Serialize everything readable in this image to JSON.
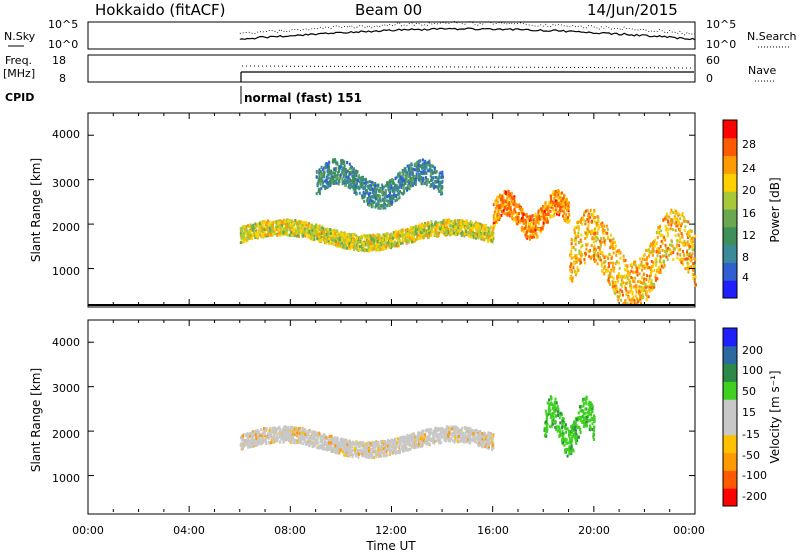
{
  "header": {
    "radar": "Hokkaido (fitACF)",
    "beam": "Beam 00",
    "date": "14/Jun/2015"
  },
  "panels": {
    "nsky": {
      "label": "N.Sky",
      "left_ticks": [
        "10^5",
        "10^0"
      ],
      "right_ticks": [
        "10^5",
        "10^0"
      ],
      "right_label": "N.Search"
    },
    "freq": {
      "label_line1": "Freq.",
      "label_line2": "[MHz]",
      "left_ticks": [
        "18",
        "8"
      ],
      "right_ticks": [
        "60",
        "0"
      ],
      "right_label": "Nave"
    },
    "cpid": {
      "label": "CPID",
      "mode_text": "normal (fast) 151"
    }
  },
  "time_axis": {
    "ticks": [
      "00:00",
      "04:00",
      "08:00",
      "12:00",
      "16:00",
      "20:00",
      "00:00"
    ],
    "label": "Time UT"
  },
  "power_panel": {
    "ylabel": "Slant Range [km]",
    "yticks": [
      "4000",
      "3000",
      "2000",
      "1000"
    ],
    "colorbar_label": "Power [dB]",
    "colorbar_ticks": [
      "28",
      "24",
      "20",
      "16",
      "12",
      "8",
      "4"
    ]
  },
  "velocity_panel": {
    "ylabel": "Slant Range [km]",
    "yticks": [
      "4000",
      "3000",
      "2000",
      "1000"
    ],
    "colorbar_label": "Velocity [m s⁻¹]",
    "colorbar_ticks": [
      "200",
      "100",
      "50",
      "15",
      "-15",
      "-50",
      "-100",
      "-200"
    ]
  },
  "chart_data": [
    {
      "type": "heatmap",
      "title": "Power",
      "xlabel": "Time UT",
      "ylabel": "Slant Range [km]",
      "xlim_hours": [
        0,
        24
      ],
      "ylim_km": [
        180,
        4500
      ],
      "colorbar": {
        "label": "Power [dB]",
        "range": [
          0,
          30
        ],
        "colors": [
          "#2020ff",
          "#3060d0",
          "#3a8a9a",
          "#3f8f5a",
          "#6aa84f",
          "#a8c838",
          "#ffd000",
          "#ff9a00",
          "#ff5a00",
          "#ff0000"
        ]
      },
      "data_start_hour": 6,
      "scatter_bands": [
        {
          "from_hour": 6,
          "to_hour": 16,
          "range_km": [
            1500,
            2000
          ],
          "power_db": 18
        },
        {
          "from_hour": 9,
          "to_hour": 14,
          "range_km": [
            2500,
            3300
          ],
          "power_db": 8
        },
        {
          "from_hour": 16,
          "to_hour": 19,
          "range_km": [
            1800,
            2600
          ],
          "power_db": 24
        },
        {
          "from_hour": 19,
          "to_hour": 24,
          "range_km": [
            300,
            2000
          ],
          "power_db": 22
        }
      ]
    },
    {
      "type": "heatmap",
      "title": "Velocity",
      "xlabel": "Time UT",
      "ylabel": "Slant Range [km]",
      "xlim_hours": [
        0,
        24
      ],
      "ylim_km": [
        180,
        4500
      ],
      "colorbar": {
        "label": "Velocity [m s⁻¹]",
        "range": [
          -250,
          250
        ],
        "colors": [
          "#ff0000",
          "#ff5a00",
          "#ff9a00",
          "#ffc000",
          "#c8c8c8",
          "#c8c8c8",
          "#40d020",
          "#2c8a48",
          "#2a6aa0",
          "#2020ff"
        ]
      },
      "data_start_hour": 6,
      "scatter_bands": [
        {
          "from_hour": 6,
          "to_hour": 16,
          "range_km": [
            1500,
            2000
          ],
          "velocity": 0
        },
        {
          "from_hour": 18,
          "to_hour": 20,
          "range_km": [
            1600,
            2600
          ],
          "velocity": 40
        }
      ]
    }
  ]
}
